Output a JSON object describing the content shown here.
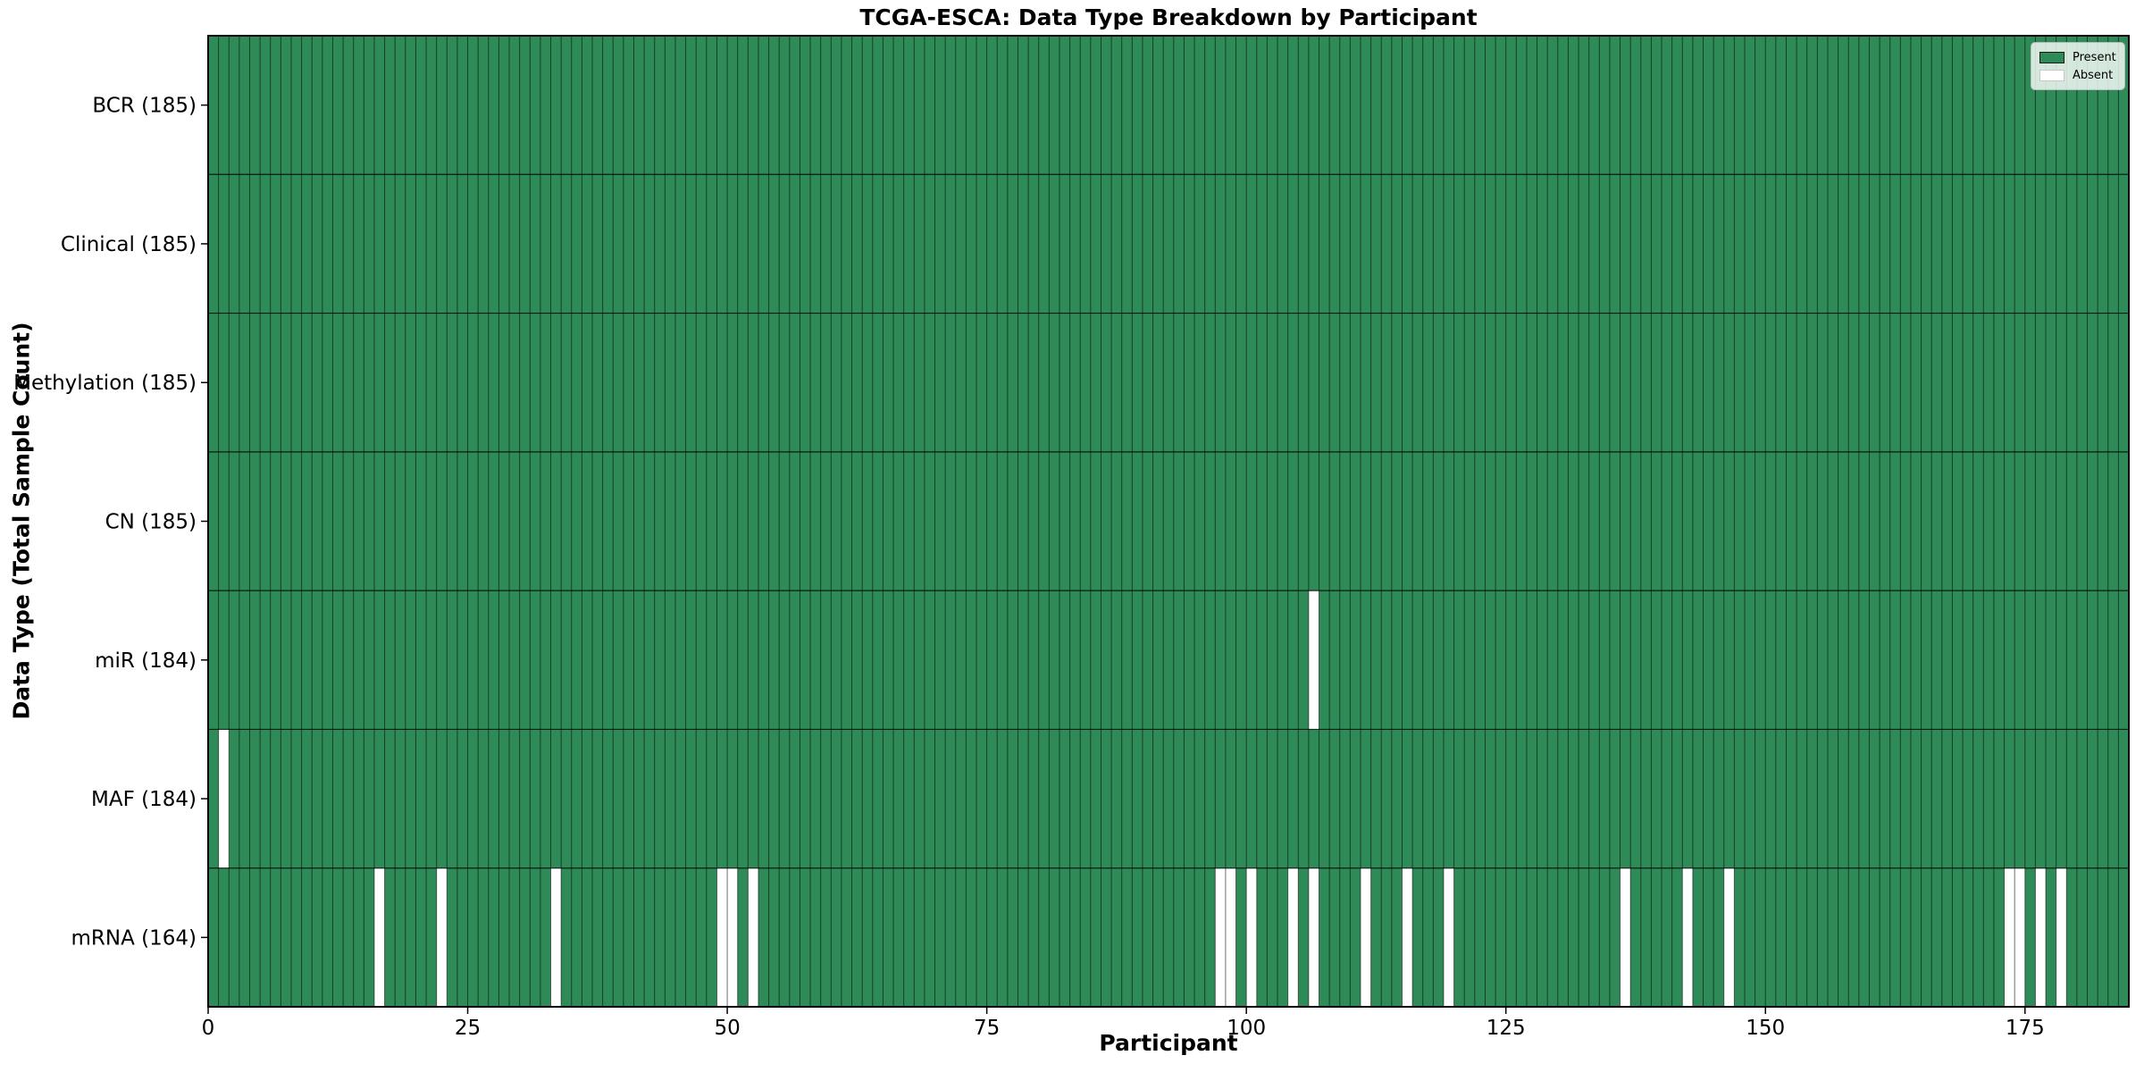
{
  "chart_data": {
    "type": "heatmap",
    "title": "TCGA-ESCA: Data Type Breakdown by Participant",
    "xlabel": "Participant",
    "ylabel": "Data Type (Total Sample Count)",
    "n_participants": 185,
    "x_axis_range": [
      0,
      185
    ],
    "x_ticks": [
      0,
      25,
      50,
      75,
      100,
      125,
      150,
      175
    ],
    "legend_position": "upper-right",
    "legend": {
      "present_label": "Present",
      "absent_label": "Absent"
    },
    "colors": {
      "present": "#2e8b57",
      "absent": "#ffffff",
      "cell_edge": "rgba(0,0,0,0.55)",
      "row_divider": "rgba(0,0,0,0.8)",
      "spine": "#000000",
      "text": "#000000"
    },
    "rows": [
      {
        "label": "BCR (185)",
        "data_type": "BCR",
        "total": 185,
        "absent_participants": []
      },
      {
        "label": "Clinical (185)",
        "data_type": "Clinical",
        "total": 185,
        "absent_participants": []
      },
      {
        "label": "Methylation (185)",
        "data_type": "Methylation",
        "total": 185,
        "absent_participants": []
      },
      {
        "label": "CN (185)",
        "data_type": "CN",
        "total": 185,
        "absent_participants": []
      },
      {
        "label": "miR (184)",
        "data_type": "miR",
        "total": 184,
        "absent_participants": [
          106
        ]
      },
      {
        "label": "MAF (184)",
        "data_type": "MAF",
        "total": 184,
        "absent_participants": [
          1
        ]
      },
      {
        "label": "mRNA (164)",
        "data_type": "mRNA",
        "total": 164,
        "absent_participants": [
          16,
          22,
          33,
          49,
          50,
          52,
          97,
          98,
          100,
          104,
          106,
          111,
          115,
          119,
          136,
          142,
          146,
          173,
          174,
          176,
          178
        ]
      }
    ]
  }
}
